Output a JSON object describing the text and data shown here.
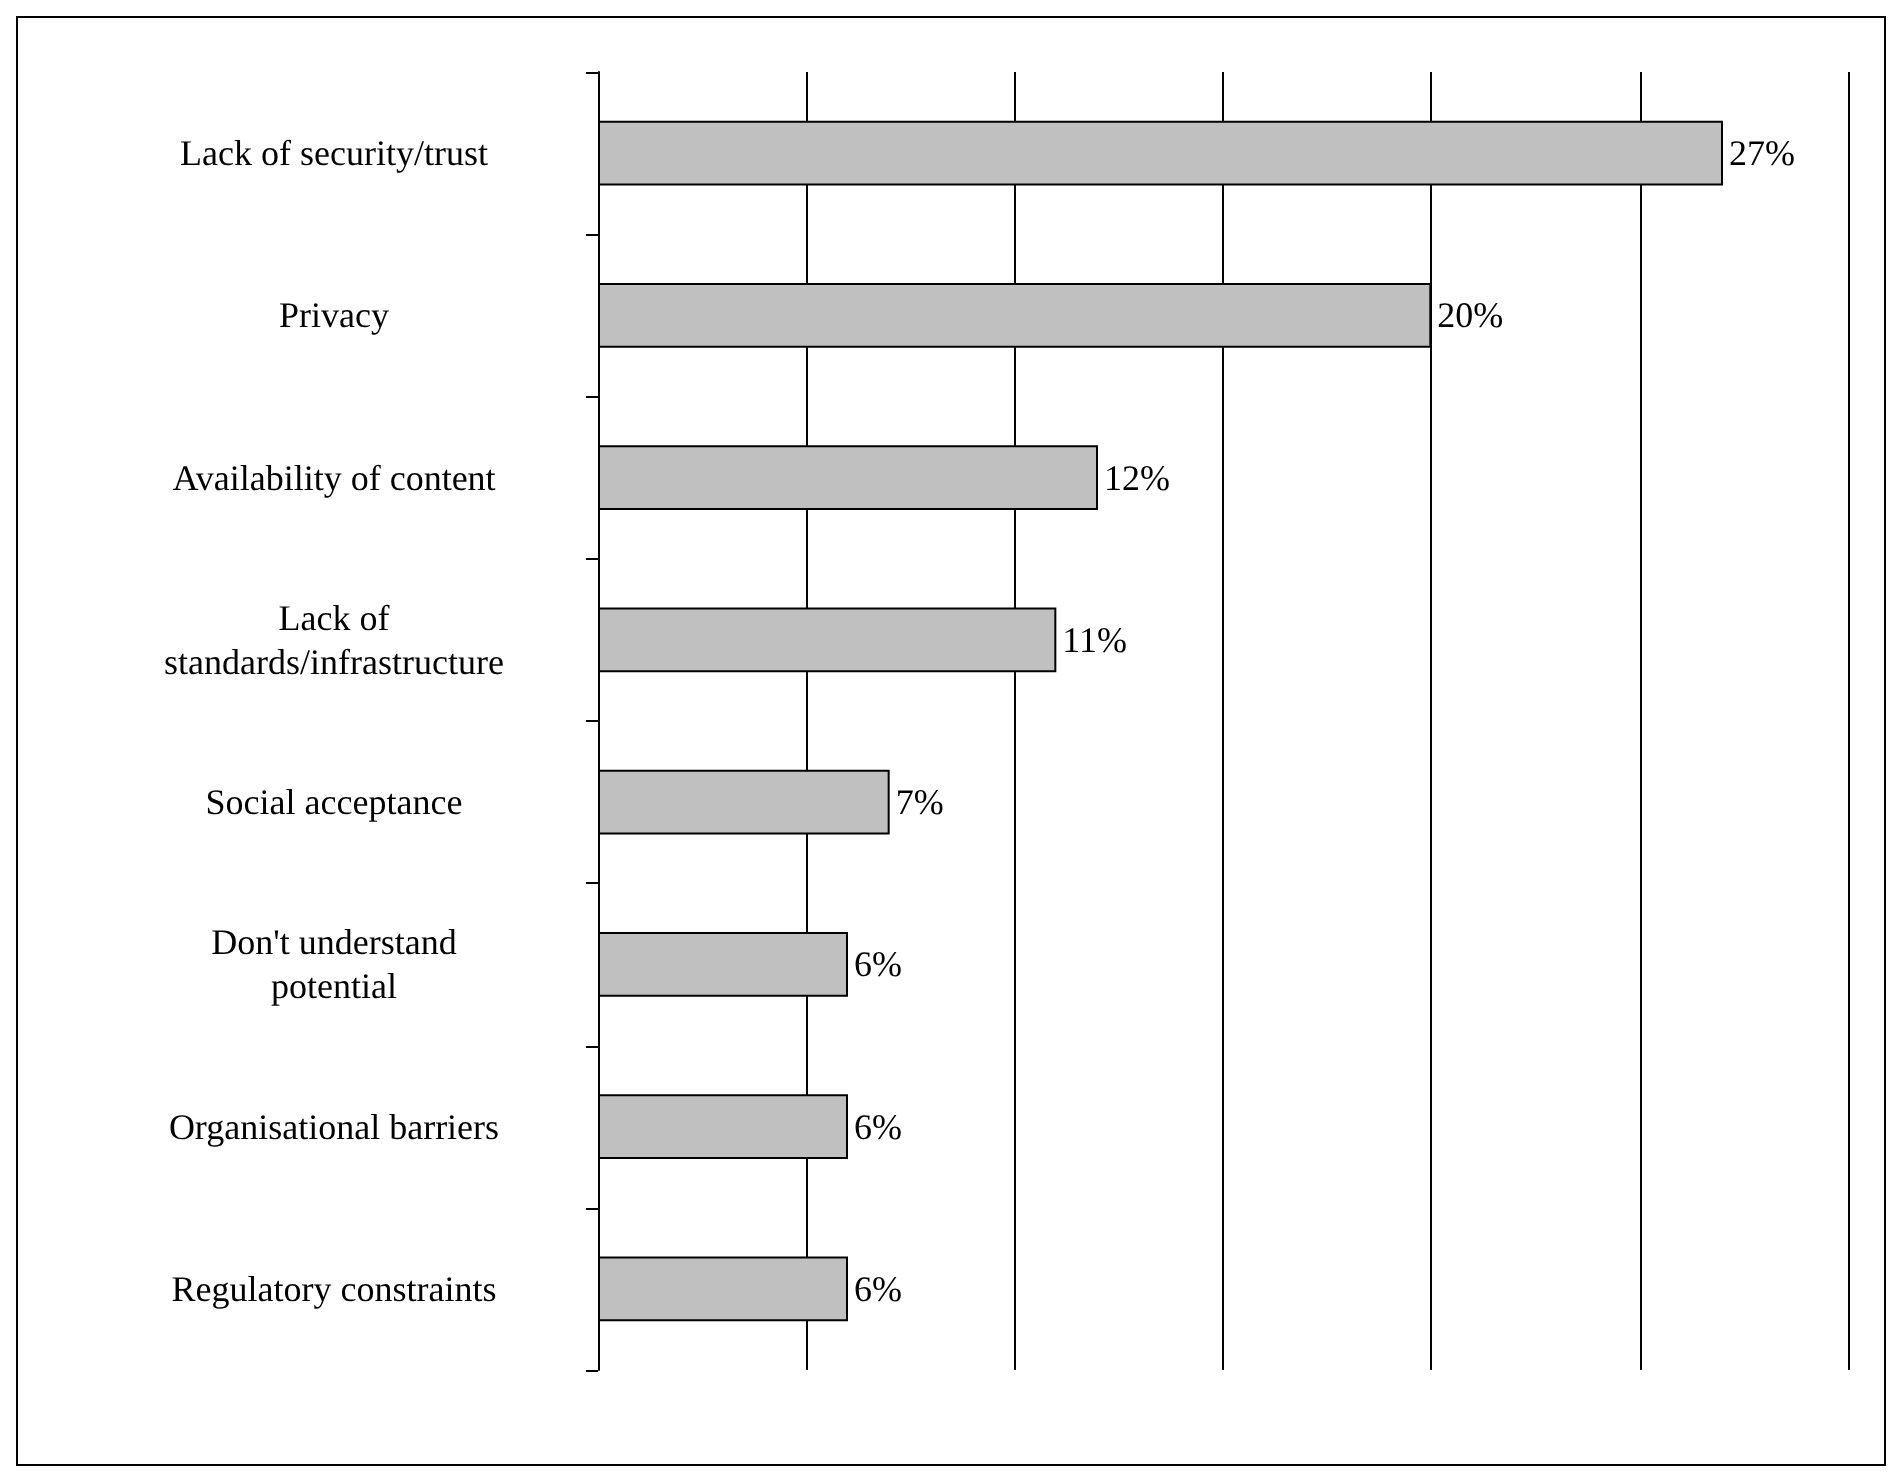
{
  "chart_data": {
    "type": "bar",
    "orientation": "horizontal",
    "categories": [
      "Lack of security/trust",
      "Privacy",
      "Availability of content",
      "Lack of\nstandards/infrastructure",
      "Social acceptance",
      "Don't understand\npotential",
      "Organisational barriers",
      "Regulatory constraints"
    ],
    "values": [
      27,
      20,
      12,
      11,
      7,
      6,
      6,
      6
    ],
    "value_labels": [
      "27%",
      "20%",
      "12%",
      "11%",
      "7%",
      "6%",
      "6%",
      "6%"
    ],
    "color": "#c0c0c0",
    "xlim": [
      0,
      30
    ],
    "xticks": [
      {
        "value": 0,
        "label": null
      },
      {
        "value": 5,
        "label": null
      },
      {
        "value": 10,
        "label": null
      },
      {
        "value": 15,
        "label": null
      },
      {
        "value": 20,
        "label": null
      },
      {
        "value": 25,
        "label": null
      },
      {
        "value": 30,
        "label": null
      }
    ],
    "grid": "x",
    "tick_labels": "y"
  }
}
